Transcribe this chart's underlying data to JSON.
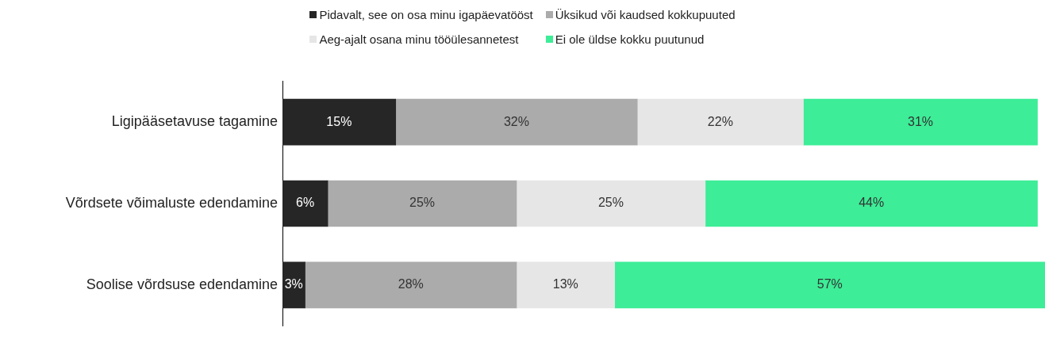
{
  "chart_data": {
    "type": "bar",
    "orientation": "horizontal",
    "stacked": true,
    "legend": "top",
    "tick_labels": "y",
    "xlim": [
      0,
      101
    ],
    "categories": [
      "Ligipääsetavuse tagamine",
      "Võrdsete võimaluste edendamine",
      "Soolise võrdsuse edendamine"
    ],
    "series": [
      {
        "name": "Pidavalt, see on osa minu igapäevatööst",
        "color": "#262626",
        "values": [
          15,
          6,
          3
        ],
        "value_labels": [
          "15%",
          "6%",
          "3%"
        ]
      },
      {
        "name": "Üksikud või kaudsed kokkupuuted",
        "color": "#ababab",
        "values": [
          32,
          25,
          28
        ],
        "value_labels": [
          "32%",
          "25%",
          "28%"
        ]
      },
      {
        "name": "Aeg-ajalt osana minu tööülesannetest",
        "color": "#e6e6e6",
        "values": [
          22,
          25,
          13
        ],
        "value_labels": [
          "22%",
          "25%",
          "13%"
        ]
      },
      {
        "name": "Ei ole üldse kokku puutunud",
        "color": "#3ded97",
        "values": [
          31,
          44,
          57
        ],
        "value_labels": [
          "31%",
          "44%",
          "57%"
        ]
      }
    ]
  }
}
